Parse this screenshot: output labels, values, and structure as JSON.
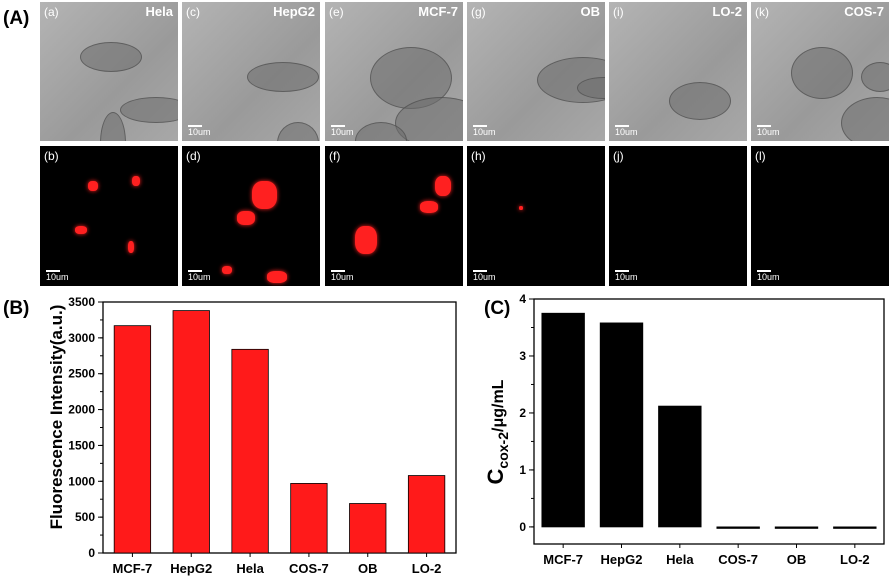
{
  "panel_labels": {
    "A": "(A)",
    "B": "(B)",
    "C": "(C)"
  },
  "micrographs": {
    "top": [
      {
        "tag": "(a)",
        "name": "Hela",
        "scale": ""
      },
      {
        "tag": "(c)",
        "name": "HepG2",
        "scale": "10um"
      },
      {
        "tag": "(e)",
        "name": "MCF-7",
        "scale": "10um"
      },
      {
        "tag": "(g)",
        "name": "OB",
        "scale": "10um"
      },
      {
        "tag": "(i)",
        "name": "LO-2",
        "scale": "10um"
      },
      {
        "tag": "(k)",
        "name": "COS-7",
        "scale": "10um"
      }
    ],
    "bottom": [
      {
        "tag": "(b)",
        "scale": "10um"
      },
      {
        "tag": "(d)",
        "scale": "10um"
      },
      {
        "tag": "(f)",
        "scale": "10um"
      },
      {
        "tag": "(h)",
        "scale": "10um"
      },
      {
        "tag": "(j)",
        "scale": "10um"
      },
      {
        "tag": "(l)",
        "scale": "10um"
      }
    ]
  },
  "colors": {
    "bar_b": "#ff1a1a",
    "bar_c": "#000000",
    "cell_bright": "#a9a9a9",
    "fluor": "#ff2020"
  },
  "chart_data": [
    {
      "type": "bar",
      "categories": [
        "MCF-7",
        "HepG2",
        "Hela",
        "COS-7",
        "OB",
        "LO-2"
      ],
      "values": [
        3170,
        3380,
        2840,
        970,
        690,
        1080
      ],
      "ylabel": "Fluorescence Intensity(a.u.)",
      "ylim": [
        0,
        3500
      ],
      "yticks": [
        "0",
        "500",
        "1000",
        "1500",
        "2000",
        "2500",
        "3000",
        "3500"
      ],
      "bar_color": "#ff1a1a"
    },
    {
      "type": "bar",
      "categories": [
        "MCF-7",
        "HepG2",
        "Hela",
        "COS-7",
        "OB",
        "LO-2"
      ],
      "values": [
        3.75,
        3.58,
        2.12,
        -0.02,
        0.0,
        0.0
      ],
      "ylabel_main": "C",
      "ylabel_sub": "cox-2",
      "ylabel_unit": "/μg/mL",
      "ylim": [
        -0.3,
        4
      ],
      "yticks": [
        "0",
        "1",
        "2",
        "3",
        "4"
      ],
      "bar_color": "#000000"
    }
  ]
}
